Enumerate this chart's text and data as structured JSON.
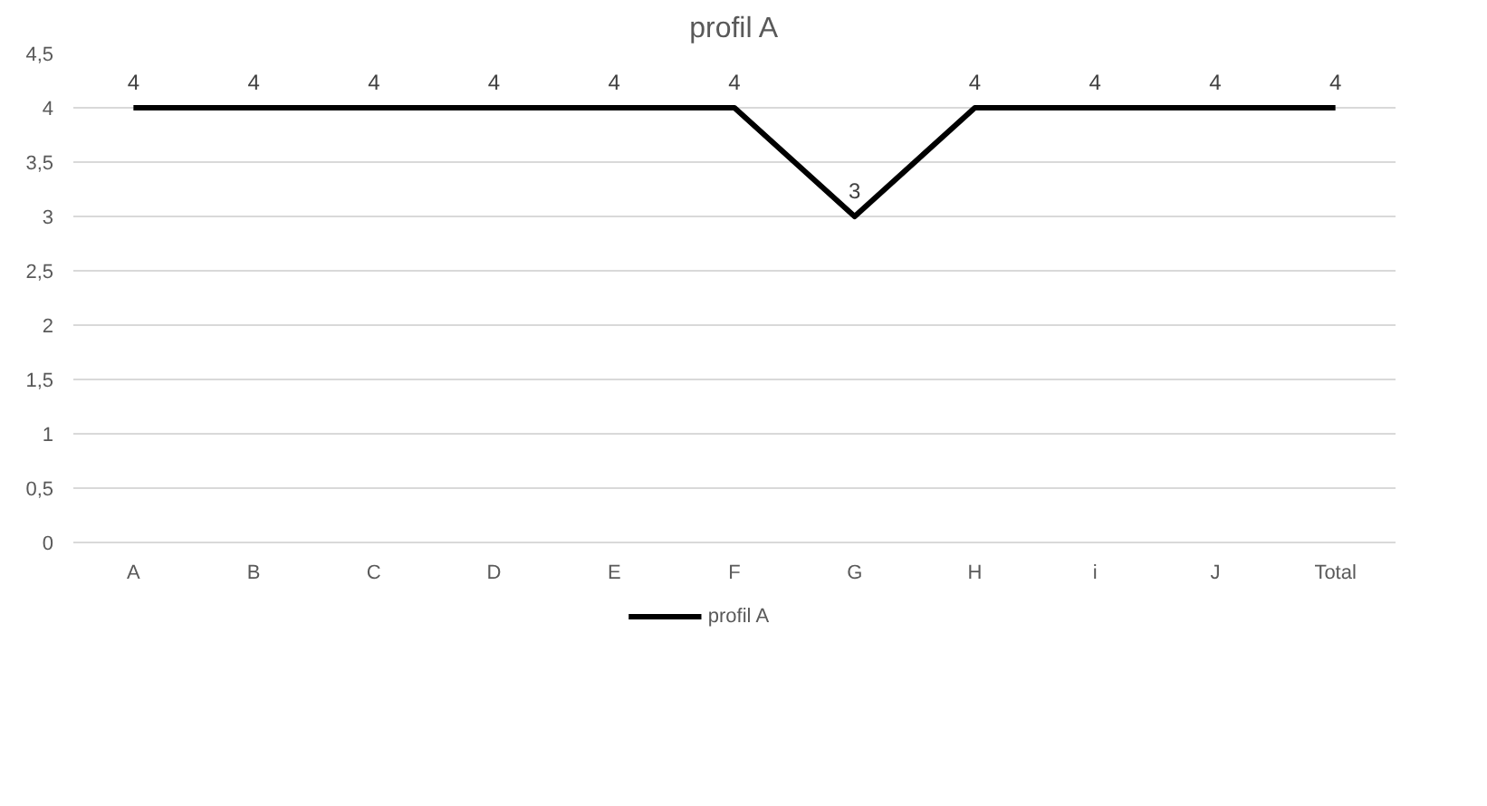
{
  "chart_data": {
    "type": "line",
    "title": "profil A",
    "categories": [
      "A",
      "B",
      "C",
      "D",
      "E",
      "F",
      "G",
      "H",
      "i",
      "J",
      "Total"
    ],
    "series": [
      {
        "name": "profil A",
        "color": "#000000",
        "values": [
          4,
          4,
          4,
          4,
          4,
          4,
          3,
          4,
          4,
          4,
          4
        ]
      }
    ],
    "ylim": [
      0,
      4.5
    ],
    "yticks": [
      0,
      {
        "value": 0.5,
        "label": "0,5"
      },
      1,
      {
        "value": 1.5,
        "label": "1,5"
      },
      2,
      {
        "value": 2.5,
        "label": "2,5"
      },
      3,
      {
        "value": 3.5,
        "label": "3,5"
      },
      4,
      {
        "value": 4.5,
        "label": "4,5"
      }
    ],
    "grid": "y",
    "legend": "bottom",
    "data_labels": true,
    "marker": "none",
    "line_style": "solid"
  }
}
